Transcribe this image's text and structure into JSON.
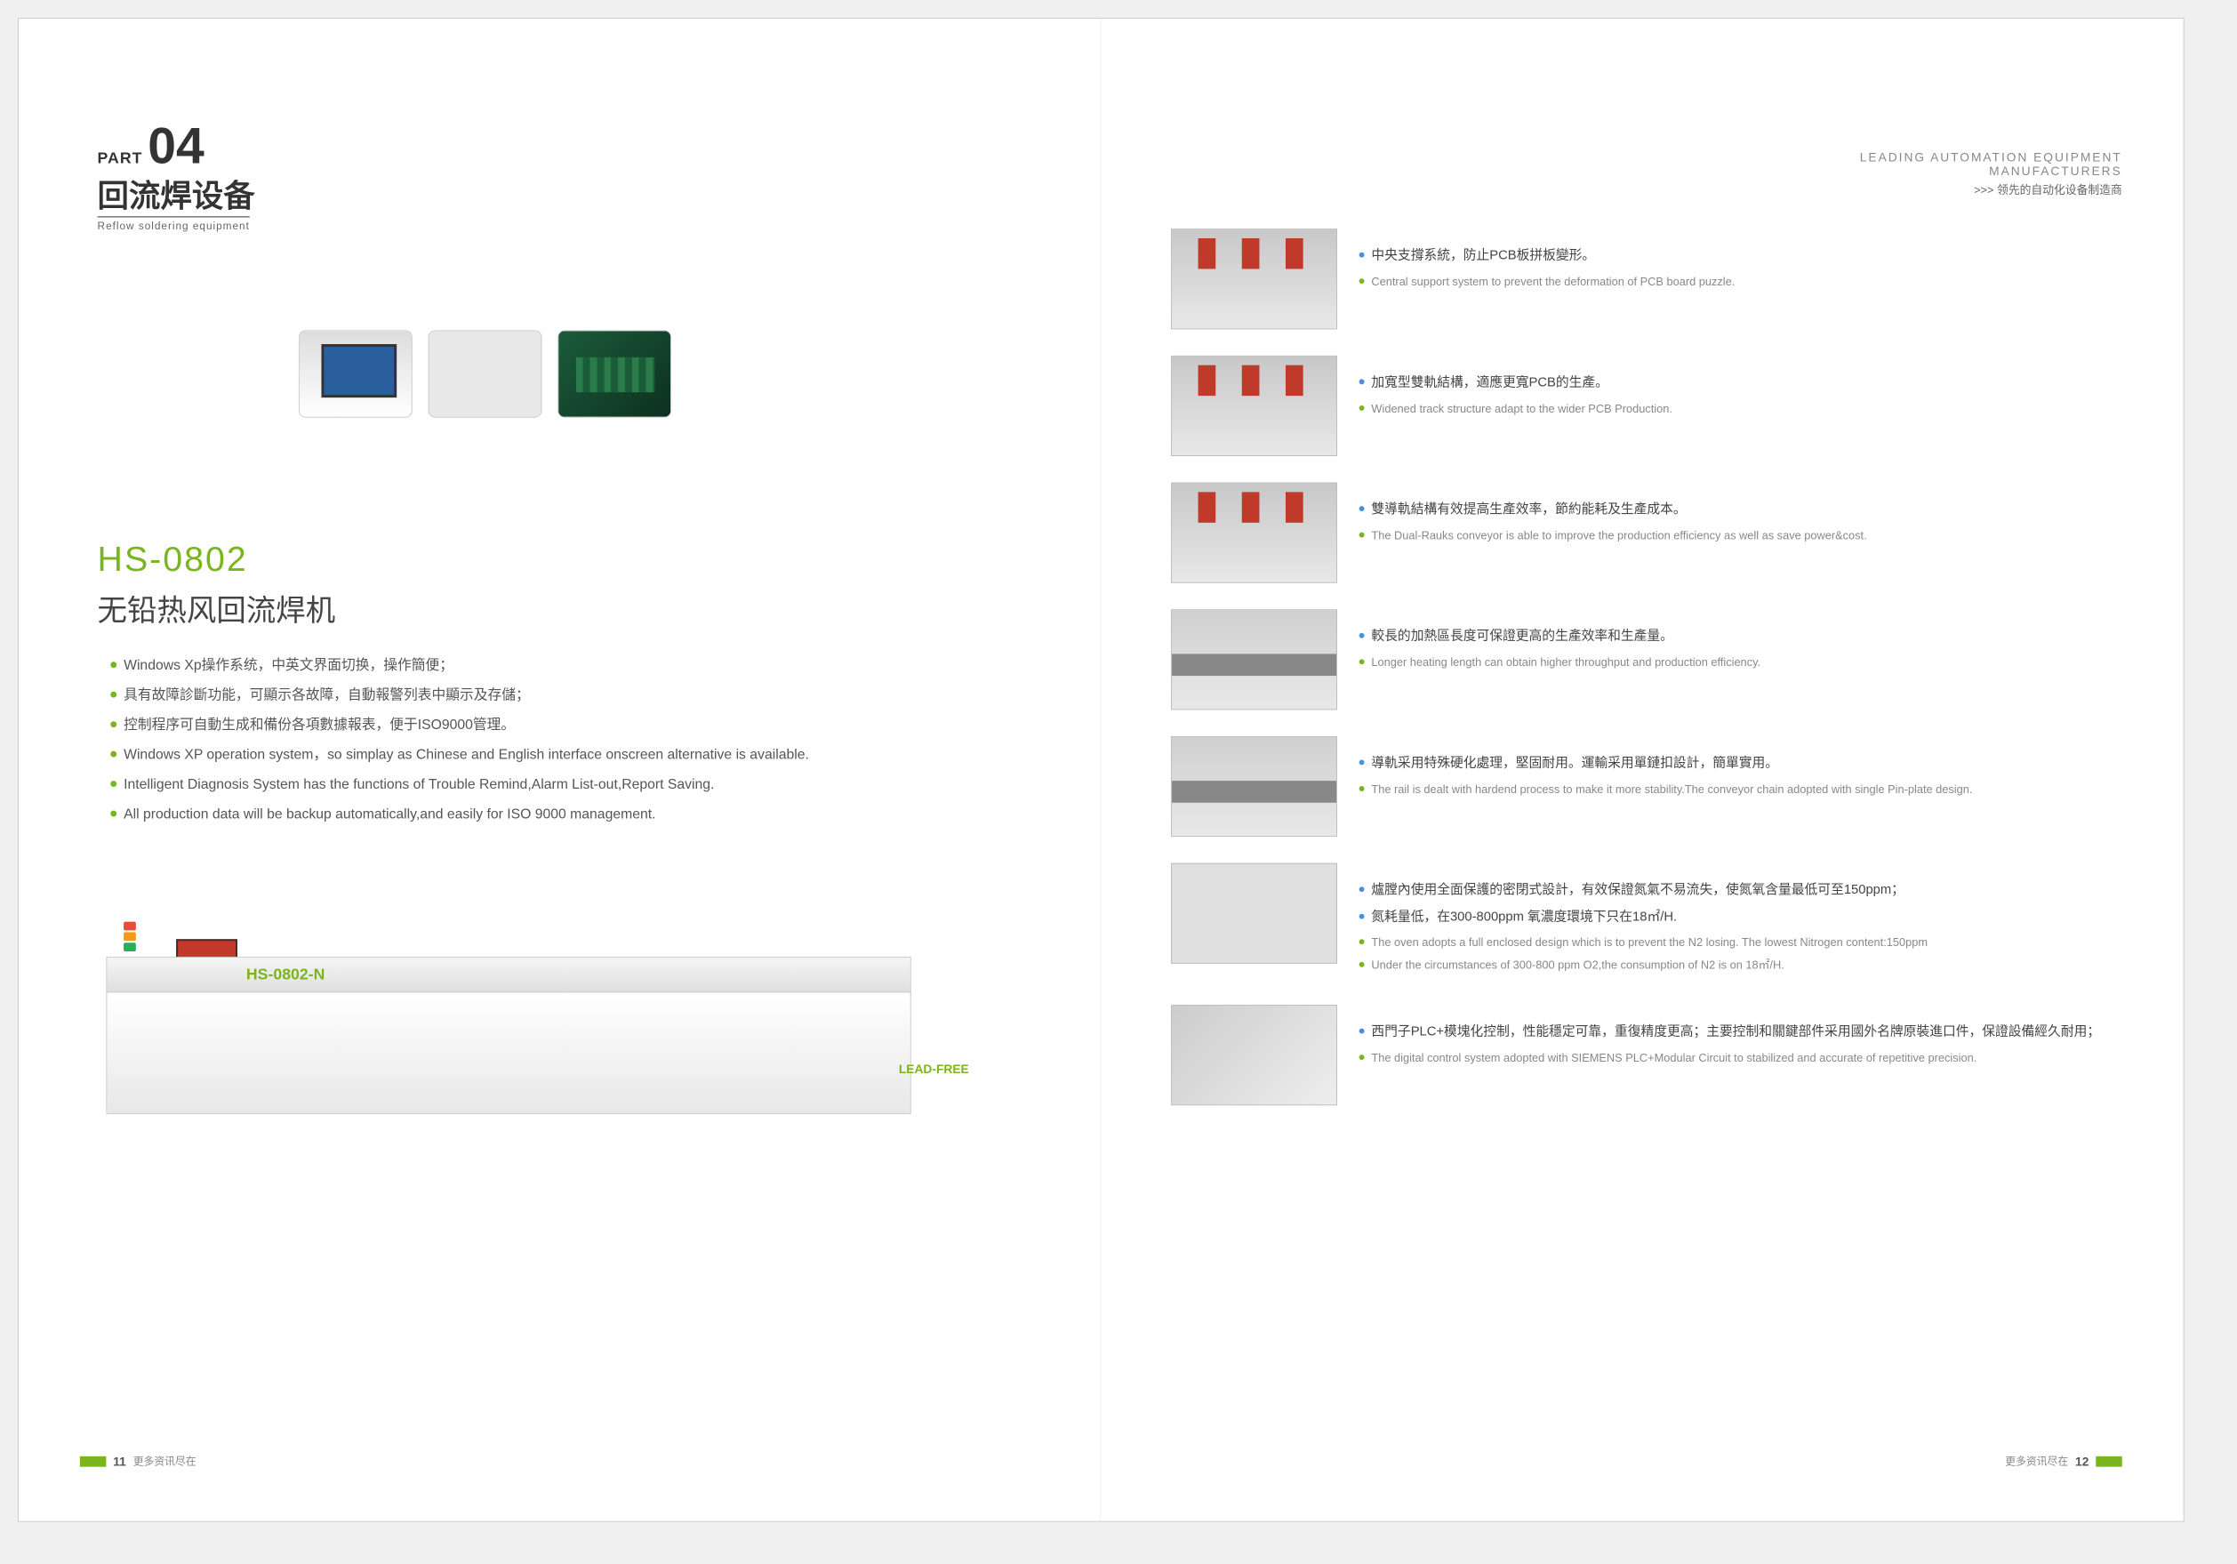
{
  "part": {
    "label": "PART",
    "number": "04",
    "title_cn": "回流焊设备",
    "title_en": "Reflow soldering equipment"
  },
  "header_right": {
    "line1": "LEADING AUTOMATION EQUIPMENT",
    "line2": "MANUFACTURERS",
    "line3": ">>> 领先的自动化设备制造商"
  },
  "product": {
    "model": "HS-0802",
    "name": "无铅热风回流焊机",
    "machine_label": "HS-0802-N",
    "machine_label2": "LEAD-FREE"
  },
  "left_features": [
    "Windows Xp操作系统，中英文界面切换，操作簡便；",
    "具有故障診斷功能，可顯示各故障，自動報警列表中顯示及存儲；",
    "控制程序可自動生成和備份各項數據報表，便于ISO9000管理。",
    "Windows XP operation system，so simplay as Chinese and English interface onscreen alternative is available.",
    "Intelligent Diagnosis System has the functions of Trouble Remind,Alarm List-out,Report Saving.",
    "All production data will be backup automatically,and easily for ISO 9000 management."
  ],
  "right_features": [
    {
      "img_style": "style1",
      "cn": [
        "中央支撐系統，防止PCB板拼板變形。"
      ],
      "en": [
        "Central support system to prevent the deformation of PCB board puzzle."
      ]
    },
    {
      "img_style": "style1",
      "cn": [
        "加寬型雙軌結構，適應更寬PCB的生產。"
      ],
      "en": [
        "Widened track structure adapt to the wider PCB Production."
      ]
    },
    {
      "img_style": "style1",
      "cn": [
        "雙導軌結構有效提高生產效率，節約能耗及生產成本。"
      ],
      "en": [
        "The Dual-Rauks conveyor is able to improve the production efficiency as well as save power&cost."
      ]
    },
    {
      "img_style": "style3",
      "cn": [
        "較長的加熱區長度可保證更高的生產效率和生產量。"
      ],
      "en": [
        "Longer heating length can obtain higher throughput and production efficiency."
      ]
    },
    {
      "img_style": "style3",
      "cn": [
        "導軌采用特殊硬化處理，堅固耐用。運輸采用單鏈扣設計，簡單實用。"
      ],
      "en": [
        "The rail is dealt with hardend process to make it more stability.The conveyor chain adopted with single Pin-plate design."
      ]
    },
    {
      "img_style": "style4",
      "cn": [
        "爐膛內使用全面保護的密閉式設計，有效保證氮氣不易流失，使氮氧含量最低可至150ppm；",
        "氮耗量低，在300-800ppm 氧濃度環境下只在18㎡/H."
      ],
      "en": [
        "The oven adopts a full enclosed design which is to prevent the N2 losing. The lowest Nitrogen content:150ppm",
        "Under the circumstances of 300-800 ppm O2,the consumption of N2 is on 18㎡/H."
      ]
    },
    {
      "img_style": "style5",
      "cn": [
        "西門子PLC+模塊化控制，性能穩定可靠，重復精度更高；主要控制和關鍵部件采用國外名牌原裝進口件，保證設備經久耐用；"
      ],
      "en": [
        "The digital control system adopted with SIEMENS PLC+Modular Circuit to stabilized and accurate of repetitive precision."
      ]
    }
  ],
  "footer": {
    "left_num": "11",
    "left_text": "更多资讯尽在",
    "right_text": "更多资讯尽在",
    "right_num": "12"
  }
}
